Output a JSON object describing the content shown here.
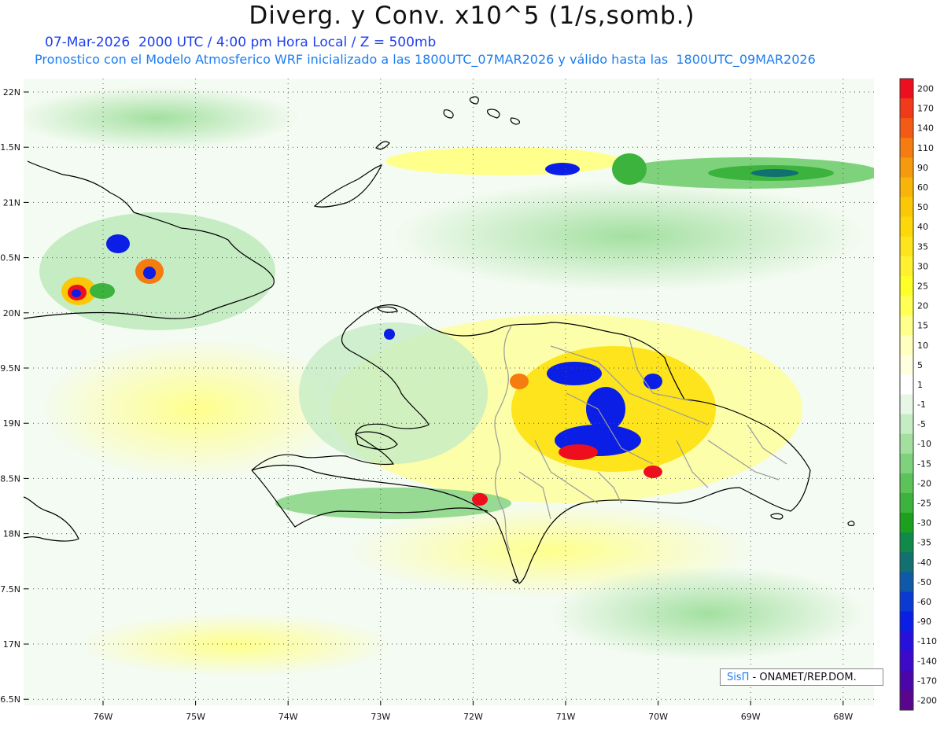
{
  "header": {
    "title": "Diverg. y Conv. x10^5 (1/s,somb.)",
    "line1": "07-Mar-2026  2000 UTC / 4:00 pm Hora Local / Z = 500mb",
    "line2": "Pronostico con el Modelo Atmosferico WRF inicializado a las 1800UTC_07MAR2026 y válido hasta las  1800UTC_09MAR2026"
  },
  "axes": {
    "lat_labels": [
      "22N",
      "1.5N",
      "21N",
      "0.5N",
      "20N",
      "9.5N",
      "19N",
      "8.5N",
      "18N",
      "7.5N",
      "17N",
      "6.5N"
    ],
    "lon_labels": [
      "76W",
      "75W",
      "74W",
      "73W",
      "72W",
      "71W",
      "70W",
      "69W",
      "68W"
    ]
  },
  "colorbar": {
    "labels": [
      "200",
      "170",
      "140",
      "110",
      "90",
      "60",
      "50",
      "40",
      "35",
      "30",
      "25",
      "20",
      "15",
      "10",
      "5",
      "1",
      "-1",
      "-5",
      "-10",
      "-15",
      "-20",
      "-25",
      "-30",
      "-35",
      "-40",
      "-50",
      "-60",
      "-90",
      "-110",
      "-140",
      "-170",
      "-200"
    ],
    "colors": [
      "#ee0f1e",
      "#f03a1a",
      "#f25a15",
      "#f47c10",
      "#f59a0c",
      "#f8b408",
      "#fbc807",
      "#fcd80a",
      "#fde41c",
      "#fff030",
      "#ffff28",
      "#ffff55",
      "#ffff8c",
      "#ffffbe",
      "#ffffdf",
      "#ffffff",
      "#e8f7e5",
      "#c6ecc4",
      "#a3e0a0",
      "#7fd27c",
      "#5cc35a",
      "#3cb33c",
      "#1ca01e",
      "#0f8a4a",
      "#127070",
      "#0f5aa8",
      "#0a3ad2",
      "#0a1ee6",
      "#2810dc",
      "#3c0ac8",
      "#4b06aa",
      "#5a068c"
    ]
  },
  "credit": {
    "brand": "SisΠ",
    "text": " - ONAMET/REP.DOM."
  },
  "colors": {
    "coast": "#000000",
    "provinces": "#9a9a9a",
    "grid": "#555555"
  }
}
